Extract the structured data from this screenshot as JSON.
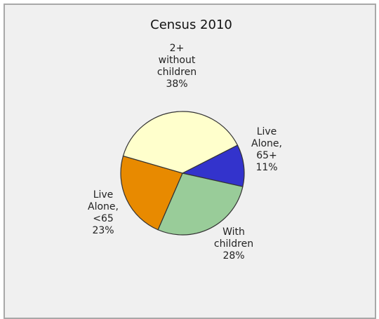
{
  "chart_data": {
    "type": "pie",
    "title": "Census 2010",
    "slices": [
      {
        "label_lines": [
          "Live",
          "Alone,",
          "65+"
        ],
        "percent_text": "11%",
        "value": 11,
        "color": "#3333cc"
      },
      {
        "label_lines": [
          "With",
          "children"
        ],
        "percent_text": "28%",
        "value": 28,
        "color": "#99cc99"
      },
      {
        "label_lines": [
          "Live",
          "Alone,",
          "<65"
        ],
        "percent_text": "23%",
        "value": 23,
        "color": "#e88a00"
      },
      {
        "label_lines": [
          "2+",
          "without",
          "children"
        ],
        "percent_text": "38%",
        "value": 38,
        "color": "#ffffcc"
      }
    ]
  }
}
